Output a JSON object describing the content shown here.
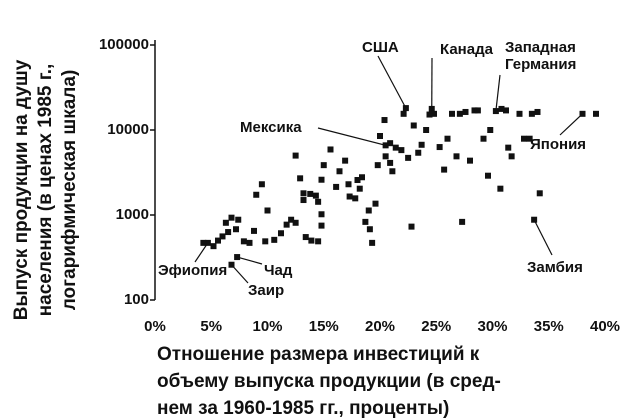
{
  "chart_data": {
    "type": "scatter",
    "y_label_lines": [
      "Выпуск продукции на душу",
      "населения (в ценах 1985 г.,",
      "логарифмическая шкала)"
    ],
    "x_label_lines": [
      "Отношение размера инвестиций к",
      "объему выпуска продукции (в сред-",
      "нем за 1960-1985 гг., проценты)"
    ],
    "log_y": true,
    "color": "#111111",
    "xlim": [
      0,
      40
    ],
    "ylim": [
      100,
      100000
    ],
    "xticks": [
      {
        "value": 0,
        "label": "0%"
      },
      {
        "value": 5,
        "label": "5%"
      },
      {
        "value": 10,
        "label": "10%"
      },
      {
        "value": 15,
        "label": "15%"
      },
      {
        "value": 20,
        "label": "20%"
      },
      {
        "value": 25,
        "label": "25%"
      },
      {
        "value": 30,
        "label": "30%"
      },
      {
        "value": 35,
        "label": "35%"
      },
      {
        "value": 40,
        "label": "40%"
      }
    ],
    "yticks": [
      100,
      1000,
      10000,
      100000
    ],
    "x": [
      22.3,
      24.6,
      30.3,
      20.5,
      38.0,
      4.7,
      7.3,
      6.8,
      33.7,
      4.3,
      5.2,
      5.6,
      6.0,
      6.3,
      6.5,
      6.8,
      7.4,
      7.2,
      7.9,
      8.4,
      8.8,
      9.0,
      9.5,
      10.0,
      9.8,
      10.6,
      11.2,
      11.7,
      12.1,
      12.5,
      12.5,
      12.9,
      13.2,
      13.2,
      13.8,
      14.3,
      14.5,
      14.8,
      13.4,
      13.9,
      14.5,
      14.8,
      14.8,
      15.0,
      15.6,
      16.1,
      16.4,
      16.9,
      17.3,
      17.2,
      17.8,
      18.0,
      18.2,
      18.4,
      18.7,
      19.1,
      19.3,
      19.0,
      19.6,
      19.8,
      20.0,
      20.4,
      20.9,
      20.5,
      20.9,
      21.1,
      21.4,
      21.9,
      22.1,
      22.5,
      22.8,
      23.0,
      23.4,
      23.7,
      24.1,
      24.4,
      24.8,
      25.3,
      25.7,
      26.0,
      26.4,
      26.8,
      27.1,
      27.3,
      27.6,
      28.0,
      28.4,
      28.7,
      29.2,
      29.6,
      29.8,
      30.7,
      30.8,
      31.2,
      31.4,
      31.7,
      32.4,
      32.8,
      33.3,
      33.5,
      34.0,
      34.2,
      39.2
    ],
    "y": [
      18100,
      17700,
      16700,
      6600,
      15500,
      470,
      320,
      260,
      880,
      470,
      430,
      500,
      560,
      810,
      630,
      930,
      880,
      680,
      490,
      470,
      650,
      1730,
      2300,
      1130,
      490,
      510,
      610,
      770,
      880,
      810,
      5000,
      2700,
      1800,
      1500,
      1770,
      1690,
      1430,
      2600,
      550,
      500,
      490,
      750,
      1020,
      3860,
      5900,
      2140,
      3270,
      4360,
      1650,
      2300,
      1570,
      2580,
      2040,
      2780,
      830,
      680,
      470,
      1130,
      1360,
      3860,
      8500,
      13100,
      7000,
      4900,
      4100,
      3270,
      6200,
      5800,
      15500,
      4700,
      730,
      11300,
      5400,
      6700,
      10000,
      15200,
      15500,
      6300,
      3420,
      7900,
      15500,
      4900,
      15500,
      830,
      16300,
      4360,
      17000,
      17000,
      7900,
      2900,
      10000,
      2040,
      17700,
      17000,
      6200,
      4900,
      15500,
      7900,
      7900,
      15500,
      16300,
      1800,
      15500
    ],
    "annotations": [
      {
        "lines": [
          "США"
        ],
        "point": 0
      },
      {
        "lines": [
          "Канада"
        ],
        "point": 1
      },
      {
        "lines": [
          "Западная",
          "Германия"
        ],
        "point": 2
      },
      {
        "lines": [
          "Мексика"
        ],
        "point": 3
      },
      {
        "lines": [
          "Япония"
        ],
        "point": 4
      },
      {
        "lines": [
          "Эфиопия"
        ],
        "point": 5
      },
      {
        "lines": [
          "Чад"
        ],
        "point": 6
      },
      {
        "lines": [
          "Заир"
        ],
        "point": 7
      },
      {
        "lines": [
          "Замбия"
        ],
        "point": 8
      }
    ]
  }
}
